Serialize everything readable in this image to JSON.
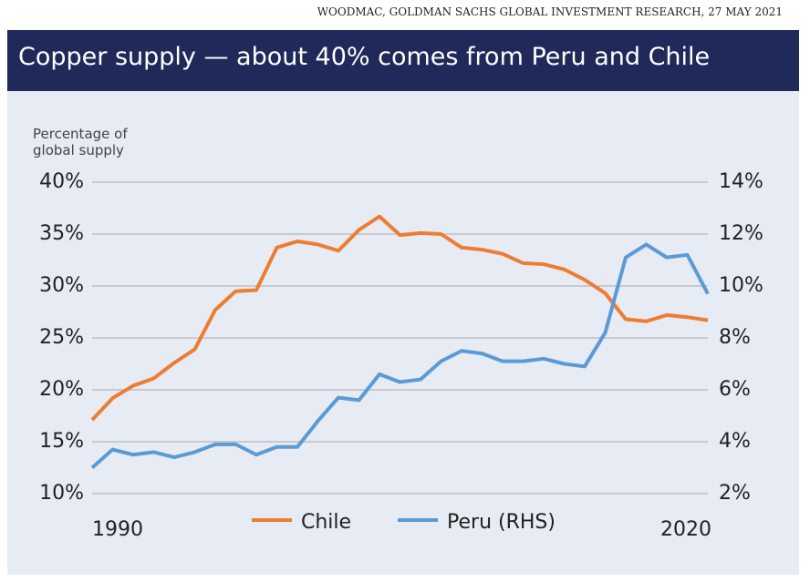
{
  "source": "WOODMAC, GOLDMAN SACHS GLOBAL INVESTMENT RESEARCH, 27 MAY 2021",
  "chart_data": {
    "type": "line",
    "title": "Copper supply — about 40% comes from Peru and Chile",
    "y_label": "Percentage of global supply",
    "x": [
      1990,
      1991,
      1992,
      1993,
      1994,
      1995,
      1996,
      1997,
      1998,
      1999,
      2000,
      2001,
      2002,
      2003,
      2004,
      2005,
      2006,
      2007,
      2008,
      2009,
      2010,
      2011,
      2012,
      2013,
      2014,
      2015,
      2016,
      2017,
      2018,
      2019,
      2020
    ],
    "xlim": [
      1990,
      2020
    ],
    "xticks": [
      1990,
      2020
    ],
    "ylim": [
      10,
      40
    ],
    "yticks": [
      {
        "value": 10,
        "label": "10%"
      },
      {
        "value": 15,
        "label": "15%"
      },
      {
        "value": 20,
        "label": "20%"
      },
      {
        "value": 25,
        "label": "25%"
      },
      {
        "value": 30,
        "label": "30%"
      },
      {
        "value": 35,
        "label": "35%"
      },
      {
        "value": 40,
        "label": "40%"
      }
    ],
    "y2lim": [
      2,
      14
    ],
    "y2ticks": [
      {
        "value": 2,
        "label": "2%"
      },
      {
        "value": 4,
        "label": "4%"
      },
      {
        "value": 6,
        "label": "6%"
      },
      {
        "value": 8,
        "label": "8%"
      },
      {
        "value": 10,
        "label": "10%"
      },
      {
        "value": 12,
        "label": "12%"
      },
      {
        "value": 14,
        "label": "14%"
      }
    ],
    "grid": true,
    "legend": "bottom",
    "series": [
      {
        "name": "Chile",
        "color": "#ed7d31",
        "values": [
          17.1,
          19.2,
          20.4,
          21.1,
          22.6,
          23.9,
          27.7,
          29.5,
          29.6,
          33.7,
          34.3,
          34.0,
          33.4,
          35.4,
          36.7,
          34.9,
          35.1,
          35.0,
          33.7,
          33.5,
          33.1,
          32.2,
          32.1,
          31.6,
          30.6,
          29.3,
          26.8,
          26.6,
          27.2,
          27.0,
          26.7
        ]
      },
      {
        "name": "Peru (RHS)",
        "color": "#5b9bd5",
        "axis": "y2",
        "values": [
          3.0,
          3.7,
          3.5,
          3.6,
          3.4,
          3.6,
          3.9,
          3.9,
          3.5,
          3.8,
          3.8,
          4.8,
          5.7,
          5.6,
          6.6,
          6.3,
          6.4,
          7.1,
          7.5,
          7.4,
          7.1,
          7.1,
          7.2,
          7.0,
          6.9,
          8.2,
          11.1,
          11.6,
          11.1,
          11.2,
          9.7
        ]
      }
    ]
  }
}
